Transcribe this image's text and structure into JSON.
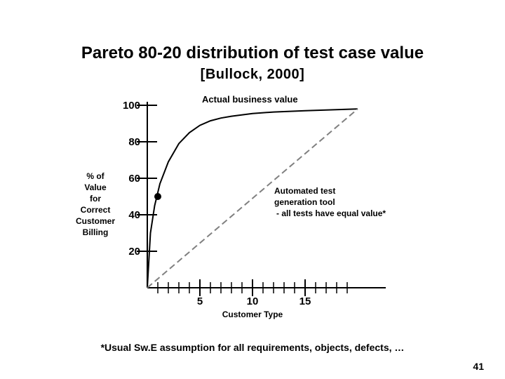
{
  "slide": {
    "title": "Pareto 80-20 distribution of test case value",
    "subtitle": "[Bullock, 2000]",
    "footnote": "*Usual Sw.E assumption for all requirements, objects, defects, …",
    "page_number": "41"
  },
  "chart_data": {
    "type": "line",
    "xlabel": "Customer Type",
    "ylabel_lines": [
      "% of",
      "Value",
      "for",
      "Correct",
      "Customer",
      "Billing"
    ],
    "xlim": [
      0,
      20
    ],
    "ylim": [
      0,
      100
    ],
    "x_ticks": [
      5,
      10,
      15
    ],
    "y_ticks": [
      100,
      80,
      60,
      40,
      20
    ],
    "series": [
      {
        "name": "Actual business value",
        "style": "solid",
        "color": "#000000",
        "x": [
          0,
          0.3,
          0.7,
          1.2,
          2,
          3,
          4,
          5,
          6,
          7,
          8,
          10,
          12,
          15,
          20
        ],
        "y": [
          0,
          30,
          45,
          57,
          69,
          79,
          85,
          89,
          91.5,
          93,
          94,
          95.5,
          96.3,
          97,
          98
        ]
      },
      {
        "name": "Automated test generation tool",
        "style": "dashed",
        "color": "#808080",
        "x": [
          0,
          20
        ],
        "y": [
          0,
          98
        ]
      }
    ],
    "marker": {
      "x": 1,
      "y": 50
    },
    "annotations": {
      "actual": "Actual business value",
      "tool_lines": [
        "Automated test",
        "generation tool",
        "- all tests have equal value*"
      ]
    }
  }
}
